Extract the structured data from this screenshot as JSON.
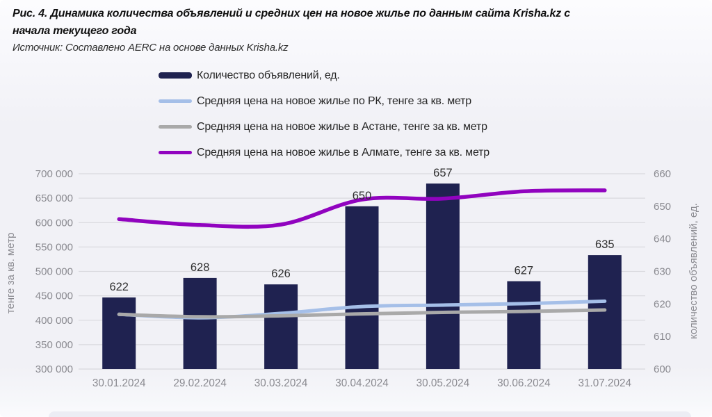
{
  "figure": {
    "title": "Рис. 4. Динамика количества объявлений и средних цен на новое жилье по данным сайта Krisha.kz с начала текущего года",
    "source": "Источник: Составлено AERC на основе данных Krisha.kz"
  },
  "colors": {
    "bar": "#1F2250",
    "price_rk": "#A5BFE8",
    "price_astana": "#A9A9A9",
    "price_almaty": "#9103BF",
    "grid": "#D9D9DE",
    "axis_text": "#8A8A90",
    "bar_label_text": "#303030",
    "legend_text": "#262626"
  },
  "chart_data": {
    "type": "bar",
    "subtype": "combo-bar-lines",
    "categories": [
      "30.01.2024",
      "29.02.2024",
      "30.03.2024",
      "30.04.2024",
      "30.05.2024",
      "30.06.2024",
      "31.07.2024"
    ],
    "bar_series": {
      "id": "ads-count",
      "name": "Количество объявлений, ед.",
      "axis": "right",
      "values": [
        622,
        628,
        626,
        650,
        657,
        627,
        635
      ],
      "labels": [
        "622",
        "628",
        "626",
        "650",
        "657",
        "627",
        "635"
      ]
    },
    "line_series": [
      {
        "id": "price-rk",
        "name": "Средняя цена на новое жилье по РК, тенге за кв. метр",
        "axis": "left",
        "color_key": "price_rk",
        "values": [
          412000,
          405000,
          414000,
          428000,
          431000,
          434000,
          439000
        ]
      },
      {
        "id": "price-astana",
        "name": "Средняя цена на новое жилье в Астане, тенге за кв. метр",
        "axis": "left",
        "color_key": "price_astana",
        "values": [
          412000,
          407000,
          409000,
          413000,
          416000,
          418000,
          421000
        ]
      },
      {
        "id": "price-almaty",
        "name": "Средняя цена на новое жилье в Алмате, тенге за кв. метр",
        "axis": "left",
        "color_key": "price_almaty",
        "values": [
          607000,
          595000,
          596000,
          647000,
          649000,
          664000,
          666000
        ]
      }
    ],
    "left_axis": {
      "title": "тенге за кв. метр",
      "min": 300000,
      "max": 700000,
      "step": 50000,
      "tick_labels": [
        "700 000",
        "650 000",
        "600 000",
        "550 000",
        "500 000",
        "450 000",
        "400 000",
        "350 000",
        "300 000"
      ]
    },
    "right_axis": {
      "title": "количество объявлений, ед.",
      "min": 600,
      "max": 660,
      "step": 10,
      "tick_labels": [
        "660",
        "650",
        "640",
        "630",
        "620",
        "610",
        "600"
      ]
    },
    "grid": true,
    "legend_position": "top"
  }
}
